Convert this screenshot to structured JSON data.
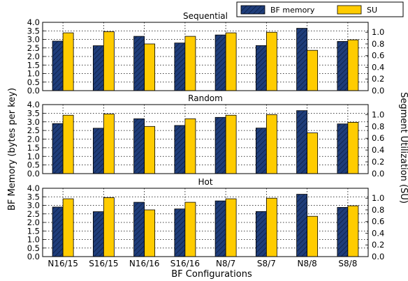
{
  "chart_data": {
    "type": "bar",
    "categories": [
      "N16/15",
      "S16/15",
      "N16/16",
      "S16/16",
      "N8/7",
      "S8/7",
      "N8/8",
      "S8/8"
    ],
    "xlabel": "BF Configurations",
    "ylabel_left": "BF Memory (bytes per key)",
    "ylabel_right": "Segment Utilization (SU)",
    "left_ylim": [
      0,
      4.0
    ],
    "left_yticks": [
      "0.0",
      "0.5",
      "1.0",
      "1.5",
      "2.0",
      "2.5",
      "3.0",
      "3.5",
      "4.0"
    ],
    "right_ylim": [
      0,
      1.17
    ],
    "right_yticks": [
      "0.0",
      "0.2",
      "0.4",
      "0.6",
      "0.8",
      "1.0"
    ],
    "grid": true,
    "legend": {
      "placement": "top-right",
      "entries": [
        "BF memory",
        "SU"
      ]
    },
    "colors": {
      "bf_memory": "#1f3d7a",
      "su": "#ffcc00"
    },
    "panels": [
      {
        "title": "Sequential",
        "series": [
          {
            "name": "BF memory",
            "axis": "left",
            "values": [
              2.9,
              2.63,
              3.18,
              2.79,
              3.26,
              2.64,
              3.65,
              2.88
            ]
          },
          {
            "name": "SU",
            "axis": "right",
            "values": [
              0.99,
              1.01,
              0.8,
              0.93,
              0.99,
              1.0,
              0.69,
              0.87
            ]
          }
        ]
      },
      {
        "title": "Random",
        "series": [
          {
            "name": "BF memory",
            "axis": "left",
            "values": [
              2.9,
              2.63,
              3.18,
              2.79,
              3.26,
              2.64,
              3.65,
              2.88
            ]
          },
          {
            "name": "SU",
            "axis": "right",
            "values": [
              0.99,
              1.01,
              0.8,
              0.93,
              0.99,
              1.0,
              0.69,
              0.87
            ]
          }
        ]
      },
      {
        "title": "Hot",
        "series": [
          {
            "name": "BF memory",
            "axis": "left",
            "values": [
              2.9,
              2.63,
              3.18,
              2.79,
              3.26,
              2.64,
              3.65,
              2.88
            ]
          },
          {
            "name": "SU",
            "axis": "right",
            "values": [
              0.99,
              1.01,
              0.8,
              0.93,
              0.99,
              1.0,
              0.69,
              0.87
            ]
          }
        ]
      }
    ]
  }
}
